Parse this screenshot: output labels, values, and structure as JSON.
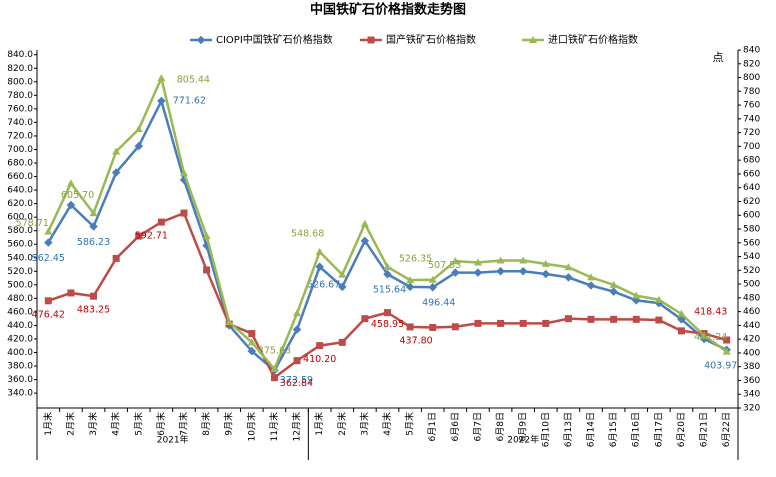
{
  "chart_data": {
    "type": "line",
    "title": "中国铁矿石价格指数走势图",
    "y2label": "点",
    "categories": [
      "1月末",
      "2月末",
      "3月末",
      "4月末",
      "5月末",
      "6月末",
      "7月末",
      "8月末",
      "9月末",
      "10月末",
      "11月末",
      "12月末",
      "1月末",
      "2月末",
      "3月末",
      "4月末",
      "5月末",
      "6月1日",
      "6月6日",
      "6月7日",
      "6月8日",
      "6月9日",
      "6月10日",
      "6月13日",
      "6月14日",
      "6月15日",
      "6月16日",
      "6月17日",
      "6月20日",
      "6月21日",
      "6月22日"
    ],
    "x_groups": [
      {
        "label": "2021年",
        "count": 12
      },
      {
        "label": "2022年",
        "count": 19
      }
    ],
    "series": [
      {
        "name": "CIOPI中国铁矿石价格指数",
        "color": "#4a7ebb",
        "label_color": "#2e75b6",
        "values": [
          562.45,
          618,
          586.23,
          666,
          705,
          771.62,
          655,
          558,
          440,
          402,
          373.59,
          434,
          526.67,
          497,
          565,
          515.64,
          497,
          496.44,
          518,
          518,
          520,
          520,
          516,
          511,
          499,
          490,
          477,
          473,
          449,
          420,
          403.97
        ],
        "value_labels": [
          "562.45",
          null,
          "586.23",
          null,
          null,
          "771.62",
          null,
          null,
          null,
          null,
          "373.59",
          null,
          "526.67",
          null,
          null,
          "515.64",
          null,
          "496.44",
          null,
          null,
          null,
          null,
          null,
          null,
          null,
          null,
          null,
          null,
          null,
          null,
          "403.97"
        ]
      },
      {
        "name": "国产铁矿石价格指数",
        "color": "#be4b48",
        "label_color": "#c00000",
        "values": [
          476.42,
          488,
          483.25,
          539,
          572,
          592.71,
          606,
          522,
          442,
          428,
          362.84,
          388,
          410.2,
          415,
          450,
          458.95,
          437.8,
          437,
          438,
          443,
          443,
          443,
          443,
          450,
          449,
          449,
          449,
          448,
          432,
          428,
          418.43
        ],
        "value_labels": [
          "476.42",
          null,
          "483.25",
          null,
          null,
          "592.71",
          null,
          null,
          null,
          null,
          "362.84",
          null,
          "410.20",
          null,
          null,
          "458.95",
          "437.80",
          null,
          null,
          null,
          null,
          null,
          null,
          null,
          null,
          null,
          null,
          null,
          null,
          null,
          "418.43"
        ]
      },
      {
        "name": "进口铁矿石价格指数",
        "color": "#98b954",
        "label_color": "#8aa33c",
        "values": [
          578.71,
          650,
          605.7,
          697,
          730,
          805.44,
          665,
          572,
          445,
          415,
          375.63,
          458,
          548.68,
          515,
          590,
          526.35,
          507,
          507.53,
          535,
          533,
          536,
          536,
          531,
          526,
          511,
          500,
          484,
          478,
          457,
          425,
          401.24
        ],
        "value_labels": [
          "578.71",
          null,
          "605.70",
          null,
          null,
          "805.44",
          null,
          null,
          null,
          null,
          "375.63",
          null,
          "548.68",
          null,
          null,
          "526.35",
          null,
          "507.53",
          null,
          null,
          null,
          null,
          null,
          null,
          null,
          null,
          null,
          null,
          null,
          null,
          "401.24"
        ]
      }
    ],
    "ylim": [
      318,
      847
    ],
    "yticks": [
      {
        "value": 340,
        "label": "340.0"
      },
      {
        "value": 360,
        "label": "360.0"
      },
      {
        "value": 380,
        "label": "380.0"
      },
      {
        "value": 400,
        "label": "400.0"
      },
      {
        "value": 420,
        "label": "420.0"
      },
      {
        "value": 440,
        "label": "440.0"
      },
      {
        "value": 460,
        "label": "460.0"
      },
      {
        "value": 480,
        "label": "480.0"
      },
      {
        "value": 500,
        "label": "500.0"
      },
      {
        "value": 520,
        "label": "520.0"
      },
      {
        "value": 540,
        "label": "540.0"
      },
      {
        "value": 560,
        "label": "560.0"
      },
      {
        "value": 580,
        "label": "580.0"
      },
      {
        "value": 600,
        "label": "600.0"
      },
      {
        "value": 620,
        "label": "620.0"
      },
      {
        "value": 640,
        "label": "640.0"
      },
      {
        "value": 660,
        "label": "660.0"
      },
      {
        "value": 680,
        "label": "680.0"
      },
      {
        "value": 700,
        "label": "700.0"
      },
      {
        "value": 720,
        "label": "720.0"
      },
      {
        "value": 740,
        "label": "740.0"
      },
      {
        "value": 760,
        "label": "760.0"
      },
      {
        "value": 780,
        "label": "780.0"
      },
      {
        "value": 800,
        "label": "800.0"
      },
      {
        "value": 820,
        "label": "820.0"
      },
      {
        "value": 840,
        "label": "840.0"
      }
    ],
    "y2lim": [
      320,
      840
    ],
    "y2ticks": [
      320,
      340,
      360,
      380,
      400,
      420,
      440,
      460,
      480,
      500,
      520,
      540,
      560,
      580,
      600,
      620,
      640,
      660,
      680,
      700,
      720,
      740,
      760,
      780,
      800,
      820,
      840
    ],
    "legend": "top",
    "grid": false
  }
}
